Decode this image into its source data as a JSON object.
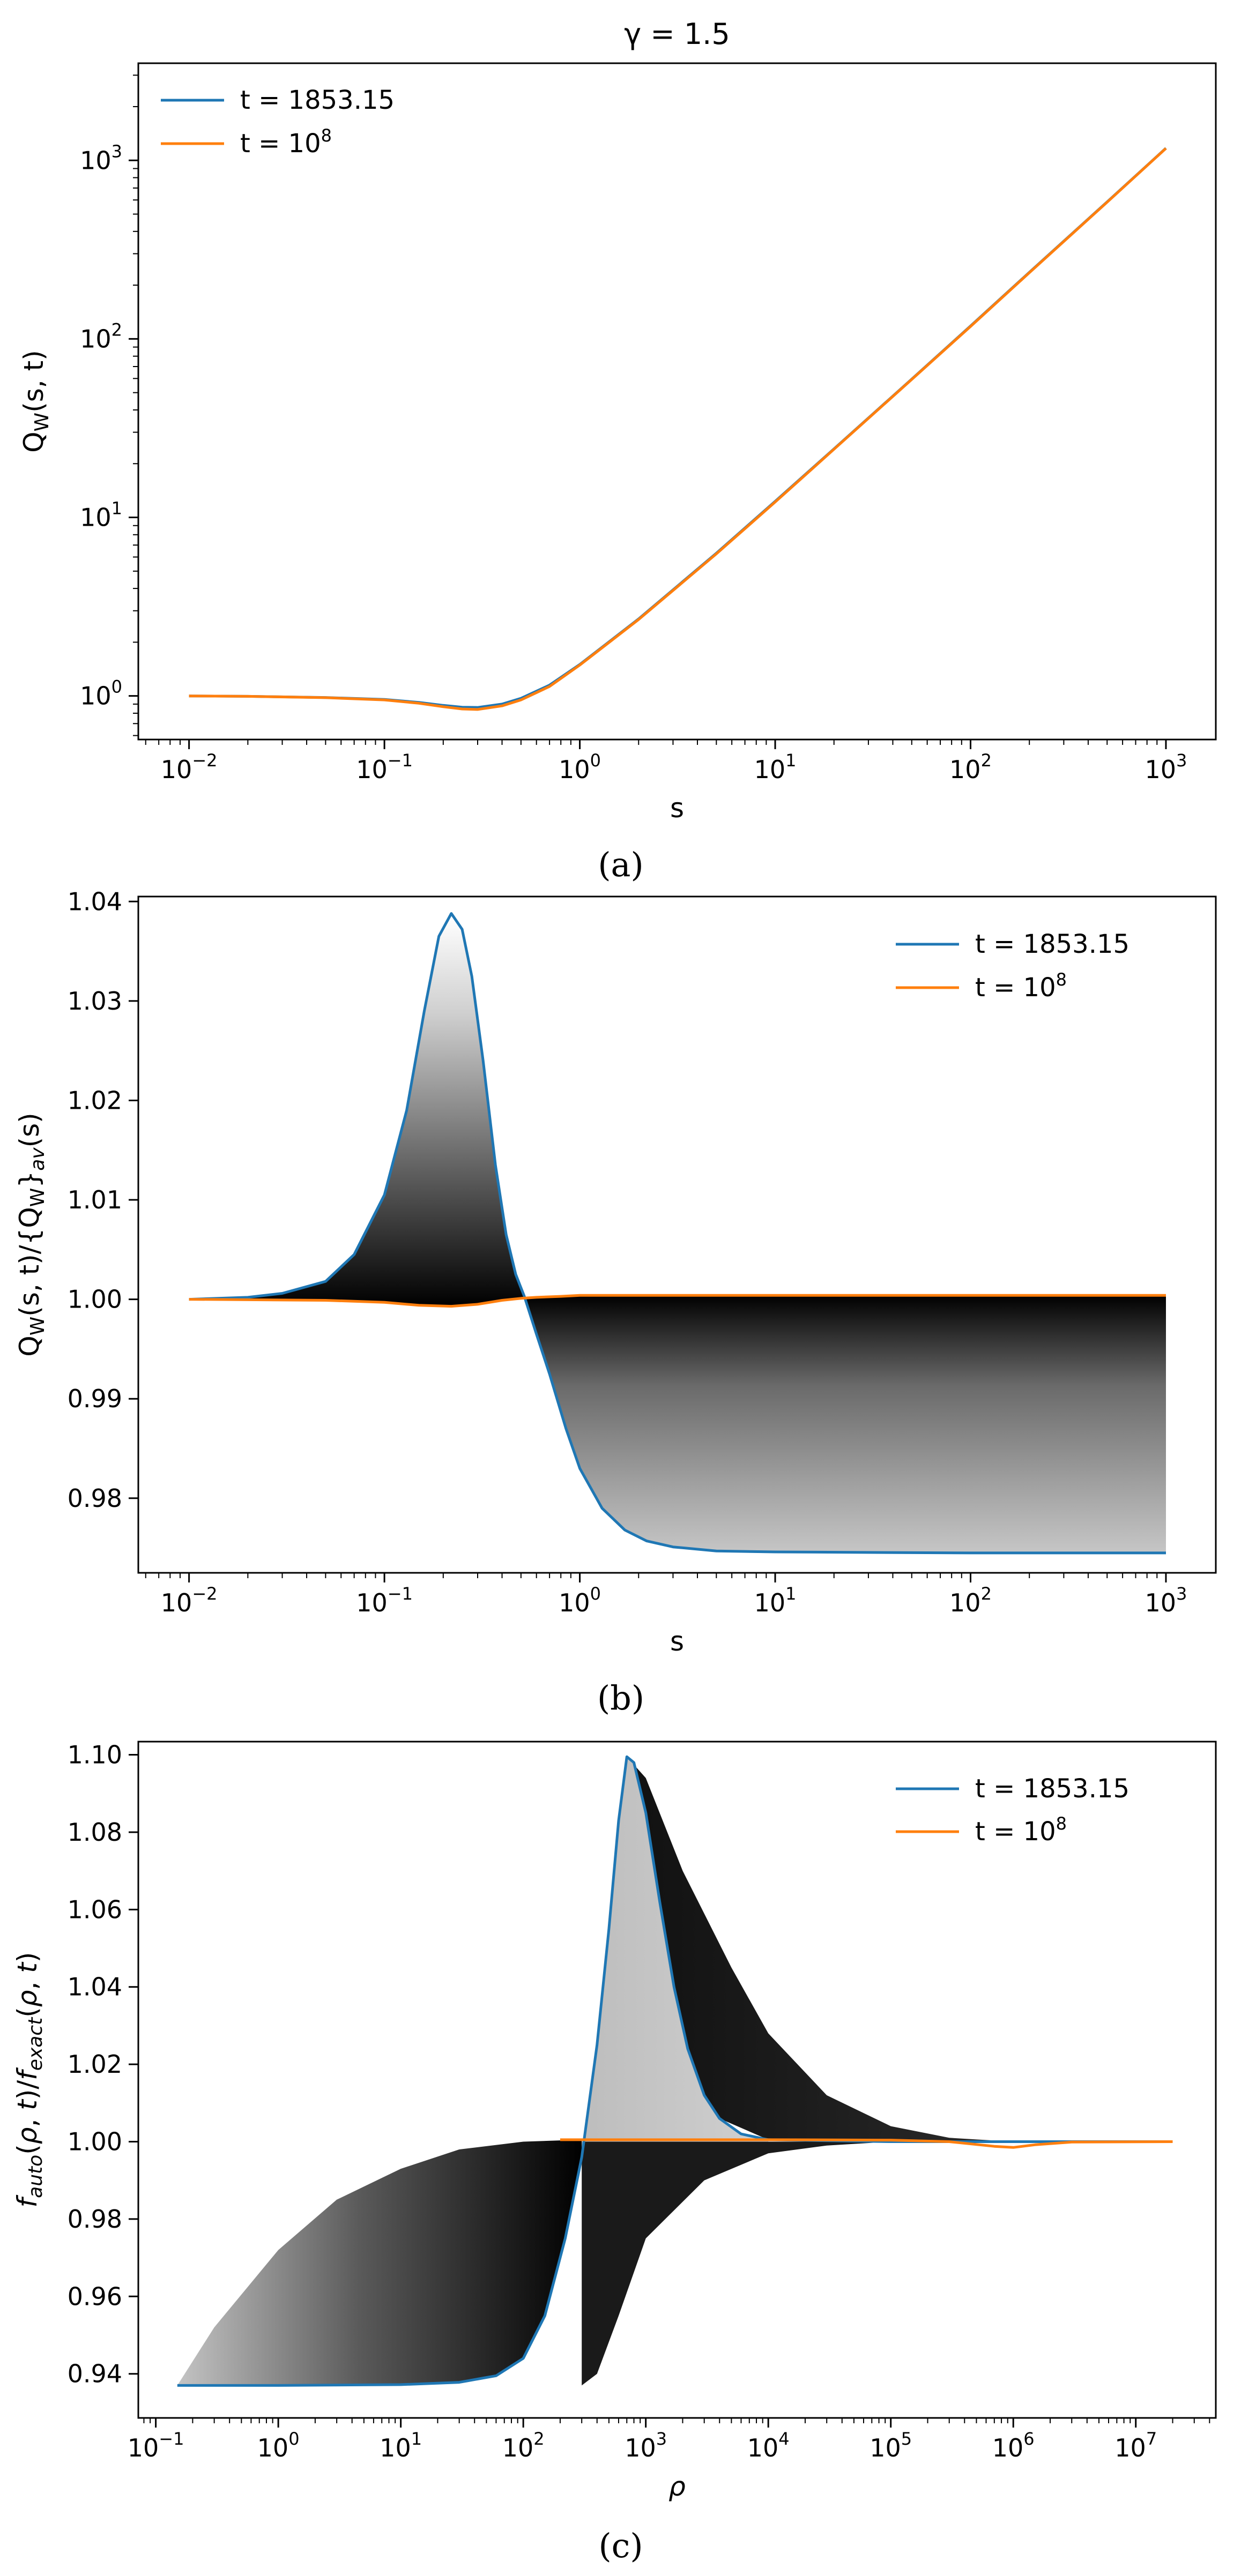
{
  "chart_data": [
    {
      "id": "a",
      "type": "line",
      "title": "γ = 1.5",
      "panel_label": "(a)",
      "xlabel": "s",
      "ylabel": "Q_W(s, t)",
      "xscale": "log",
      "yscale": "log",
      "xlim": [
        0.0055,
        1800
      ],
      "ylim": [
        0.57,
        3500
      ],
      "xticks": [
        {
          "value": 0.01,
          "base": "10",
          "exp": "−2"
        },
        {
          "value": 0.1,
          "base": "10",
          "exp": "−1"
        },
        {
          "value": 1,
          "base": "10",
          "exp": "0"
        },
        {
          "value": 10,
          "base": "10",
          "exp": "1"
        },
        {
          "value": 100,
          "base": "10",
          "exp": "2"
        },
        {
          "value": 1000,
          "base": "10",
          "exp": "3"
        }
      ],
      "yticks": [
        {
          "value": 1,
          "base": "10",
          "exp": "0"
        },
        {
          "value": 10,
          "base": "10",
          "exp": "1"
        },
        {
          "value": 100,
          "base": "10",
          "exp": "2"
        },
        {
          "value": 1000,
          "base": "10",
          "exp": "3"
        }
      ],
      "legend_position": "top-left",
      "series": [
        {
          "name": "t = 1853.15",
          "name_base": "t = 1853.15",
          "name_sup": "",
          "color": "#1f77b4",
          "x": [
            0.01,
            0.02,
            0.05,
            0.1,
            0.15,
            0.2,
            0.25,
            0.3,
            0.4,
            0.5,
            0.7,
            1,
            2,
            5,
            10,
            20,
            50,
            100,
            200,
            500,
            1000
          ],
          "y": [
            1.0,
            0.995,
            0.98,
            0.955,
            0.92,
            0.885,
            0.865,
            0.862,
            0.9,
            0.97,
            1.15,
            1.5,
            2.7,
            6.3,
            12.3,
            24.2,
            59.5,
            118,
            236,
            585,
            1170
          ]
        },
        {
          "name": "t = 10^8",
          "name_base": "t = 10",
          "name_sup": "8",
          "color": "#ff7f0e",
          "x": [
            0.01,
            0.02,
            0.05,
            0.1,
            0.15,
            0.2,
            0.25,
            0.3,
            0.4,
            0.5,
            0.7,
            1,
            2,
            5,
            10,
            20,
            50,
            100,
            200,
            500,
            1000
          ],
          "y": [
            1.0,
            0.995,
            0.978,
            0.95,
            0.91,
            0.87,
            0.845,
            0.84,
            0.88,
            0.95,
            1.13,
            1.49,
            2.68,
            6.25,
            12.2,
            24.1,
            59.3,
            117.5,
            235,
            583,
            1168
          ]
        }
      ]
    },
    {
      "id": "b",
      "type": "line",
      "title": "",
      "panel_label": "(b)",
      "xlabel": "s",
      "ylabel": "Q_W(s, t)/{Q_W}_av(s)",
      "xscale": "log",
      "yscale": "linear",
      "xlim": [
        0.0055,
        1800
      ],
      "ylim": [
        0.9725,
        1.0405
      ],
      "xticks": [
        {
          "value": 0.01,
          "base": "10",
          "exp": "−2"
        },
        {
          "value": 0.1,
          "base": "10",
          "exp": "−1"
        },
        {
          "value": 1,
          "base": "10",
          "exp": "0"
        },
        {
          "value": 10,
          "base": "10",
          "exp": "1"
        },
        {
          "value": 100,
          "base": "10",
          "exp": "2"
        },
        {
          "value": 1000,
          "base": "10",
          "exp": "3"
        }
      ],
      "yticks": [
        {
          "value": 0.98,
          "label": "0.98"
        },
        {
          "value": 0.99,
          "label": "0.99"
        },
        {
          "value": 1.0,
          "label": "1.00"
        },
        {
          "value": 1.01,
          "label": "1.01"
        },
        {
          "value": 1.02,
          "label": "1.02"
        },
        {
          "value": 1.03,
          "label": "1.03"
        },
        {
          "value": 1.04,
          "label": "1.04"
        }
      ],
      "legend_position": "top-right",
      "series": [
        {
          "name": "t = 1853.15",
          "name_base": "t = 1853.15",
          "name_sup": "",
          "color": "#1f77b4",
          "x": [
            0.01,
            0.02,
            0.03,
            0.05,
            0.07,
            0.1,
            0.13,
            0.16,
            0.19,
            0.22,
            0.25,
            0.28,
            0.32,
            0.37,
            0.42,
            0.47,
            0.52,
            0.6,
            0.7,
            0.85,
            1,
            1.3,
            1.7,
            2.2,
            3,
            5,
            10,
            100,
            1000
          ],
          "y": [
            1.0,
            1.0002,
            1.0006,
            1.0018,
            1.0045,
            1.0105,
            1.019,
            1.029,
            1.0365,
            1.0388,
            1.0372,
            1.0325,
            1.024,
            1.0135,
            1.0065,
            1.0025,
            1.0003,
            0.9965,
            0.9925,
            0.987,
            0.983,
            0.979,
            0.9768,
            0.9757,
            0.9751,
            0.9747,
            0.9746,
            0.9745,
            0.9745
          ]
        },
        {
          "name": "t = 10^8",
          "name_base": "t = 10",
          "name_sup": "8",
          "color": "#ff7f0e",
          "x": [
            0.01,
            0.05,
            0.1,
            0.15,
            0.22,
            0.3,
            0.4,
            0.5,
            0.6,
            0.8,
            1,
            2,
            10,
            100,
            1000
          ],
          "y": [
            1.0,
            0.9999,
            0.9997,
            0.9994,
            0.9993,
            0.9995,
            0.9999,
            1.0001,
            1.0002,
            1.0003,
            1.0004,
            1.0004,
            1.0004,
            1.0004,
            1.0004
          ]
        }
      ]
    },
    {
      "id": "c",
      "type": "line",
      "title": "",
      "panel_label": "(c)",
      "xlabel": "ρ",
      "ylabel": "f_auto(ρ, t)/f_exact(ρ, t)",
      "xscale": "log",
      "yscale": "linear",
      "xlim": [
        0.072,
        45000000
      ],
      "ylim": [
        0.9286,
        1.1034
      ],
      "xticks": [
        {
          "value": 0.1,
          "base": "10",
          "exp": "−1"
        },
        {
          "value": 1,
          "base": "10",
          "exp": "0"
        },
        {
          "value": 10,
          "base": "10",
          "exp": "1"
        },
        {
          "value": 100,
          "base": "10",
          "exp": "2"
        },
        {
          "value": 1000,
          "base": "10",
          "exp": "3"
        },
        {
          "value": 10000,
          "base": "10",
          "exp": "4"
        },
        {
          "value": 100000,
          "base": "10",
          "exp": "5"
        },
        {
          "value": 1000000,
          "base": "10",
          "exp": "6"
        },
        {
          "value": 10000000,
          "base": "10",
          "exp": "7"
        }
      ],
      "yticks": [
        {
          "value": 0.94,
          "label": "0.94"
        },
        {
          "value": 0.96,
          "label": "0.96"
        },
        {
          "value": 0.98,
          "label": "0.98"
        },
        {
          "value": 1.0,
          "label": "1.00"
        },
        {
          "value": 1.02,
          "label": "1.02"
        },
        {
          "value": 1.04,
          "label": "1.04"
        },
        {
          "value": 1.06,
          "label": "1.06"
        },
        {
          "value": 1.08,
          "label": "1.08"
        },
        {
          "value": 1.1,
          "label": "1.10"
        }
      ],
      "legend_position": "top-right",
      "series": [
        {
          "name": "t = 1853.15",
          "name_base": "t = 1853.15",
          "name_sup": "",
          "color": "#1f77b4",
          "x": [
            0.15,
            1,
            10,
            30,
            60,
            100,
            150,
            220,
            300,
            400,
            500,
            600,
            700,
            800,
            1000,
            1300,
            1700,
            2200,
            3000,
            4000,
            6000,
            10000,
            100000,
            1000000,
            20000000
          ],
          "y": [
            0.937,
            0.937,
            0.9372,
            0.9378,
            0.9395,
            0.944,
            0.955,
            0.975,
            0.996,
            1.025,
            1.055,
            1.083,
            1.0995,
            1.098,
            1.085,
            1.062,
            1.04,
            1.024,
            1.012,
            1.006,
            1.002,
            1.0005,
            1.0,
            1.0,
            1.0
          ]
        },
        {
          "name": "t = 10^8",
          "name_base": "t = 10",
          "name_sup": "8",
          "color": "#ff7f0e",
          "x": [
            200,
            1000,
            10000,
            100000,
            300000,
            700000,
            1000000,
            1500000,
            3000000,
            20000000
          ],
          "y": [
            1.0005,
            1.0005,
            1.0005,
            1.0004,
            1.0,
            0.9988,
            0.9985,
            0.9992,
            0.9999,
            1.0
          ]
        }
      ]
    }
  ]
}
